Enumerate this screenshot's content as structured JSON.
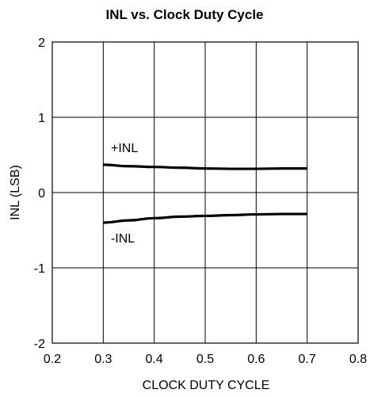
{
  "chart_data": {
    "type": "line",
    "title": "INL vs. Clock Duty Cycle",
    "xlabel": "CLOCK DUTY CYCLE",
    "ylabel": "INL (LSB)",
    "xlim": [
      0.2,
      0.8
    ],
    "ylim": [
      -2,
      2
    ],
    "x_ticks": [
      "0.2",
      "0.3",
      "0.4",
      "0.5",
      "0.6",
      "0.7",
      "0.8"
    ],
    "y_ticks": [
      "2",
      "1",
      "0",
      "-1",
      "-2"
    ],
    "grid": true,
    "series": [
      {
        "name": "+INL",
        "x": [
          0.3,
          0.35,
          0.4,
          0.45,
          0.5,
          0.55,
          0.6,
          0.65,
          0.7
        ],
        "y": [
          0.37,
          0.35,
          0.34,
          0.33,
          0.32,
          0.315,
          0.315,
          0.32,
          0.32
        ],
        "color": "#000000"
      },
      {
        "name": "-INL",
        "x": [
          0.3,
          0.35,
          0.4,
          0.45,
          0.5,
          0.55,
          0.6,
          0.65,
          0.7
        ],
        "y": [
          -0.4,
          -0.37,
          -0.34,
          -0.32,
          -0.31,
          -0.3,
          -0.29,
          -0.285,
          -0.285
        ],
        "color": "#000000"
      }
    ],
    "annotations": [
      {
        "text": "+INL",
        "x": 0.315,
        "y": 0.6
      },
      {
        "text": "-INL",
        "x": 0.315,
        "y": -0.6
      }
    ]
  }
}
